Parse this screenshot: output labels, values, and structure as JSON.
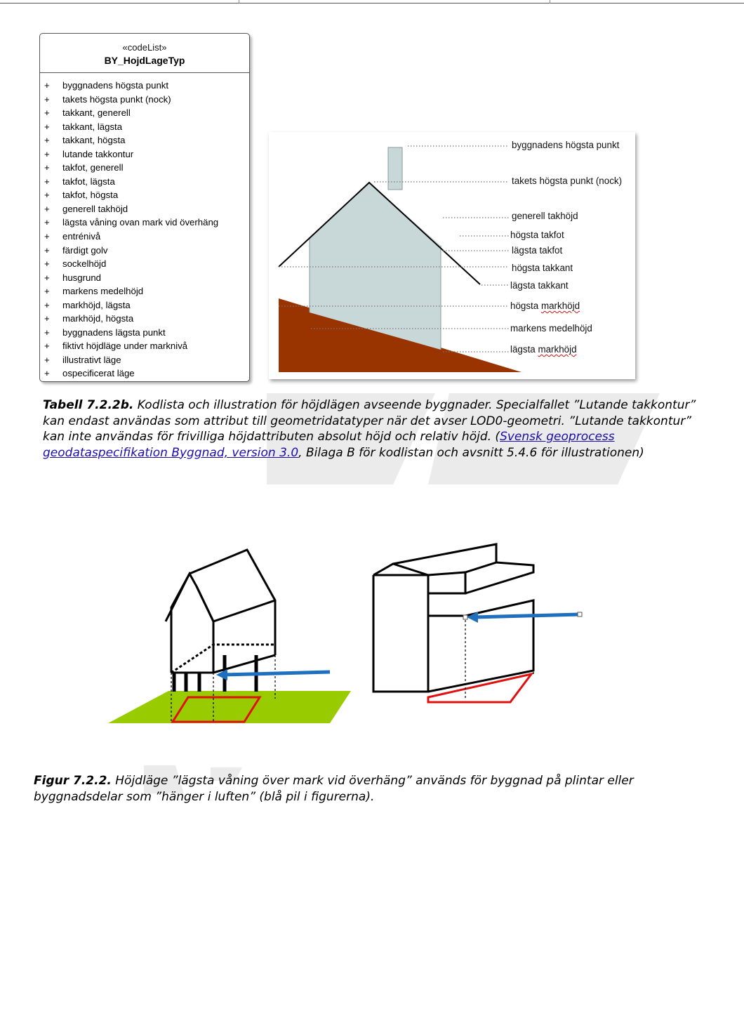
{
  "codelist": {
    "stereotype": "«codeList»",
    "name": "BY_HojdLageTyp",
    "marker": "+",
    "items": [
      "byggnadens högsta punkt",
      "takets högsta punkt (nock)",
      "takkant, generell",
      "takkant, lägsta",
      "takkant, högsta",
      "lutande takkontur",
      "takfot, generell",
      "takfot, lägsta",
      "takfot, högsta",
      "generell takhöjd",
      "lägsta våning ovan mark vid överhäng",
      "entrénivå",
      "färdigt golv",
      "sockelhöjd",
      "husgrund",
      "markens medelhöjd",
      "markhöjd, lägsta",
      "markhöjd, högsta",
      "byggnadens lägsta punkt",
      "fiktivt höjdläge under marknivå",
      "illustrativt läge",
      "ospecificerat läge"
    ]
  },
  "illustration": {
    "labels": [
      "byggnadens högsta punkt",
      "takets högsta punkt (nock)",
      "generell takhöjd",
      "högsta takfot",
      "lägsta takfot",
      "högsta takkant",
      "lägsta takkant",
      "högsta markhöjd",
      "markens medelhöjd",
      "lägsta markhöjd"
    ],
    "colors": {
      "ground": "#993300",
      "wall": "#c8d8d8",
      "chimney": "#c8d8d8"
    }
  },
  "caption1": {
    "label": "Tabell 7.2.2b.",
    "text": " Kodlista och illustration för höjdlägen avseende byggnader. Specialfallet ”Lutande takkontur” kan endast användas som attribut till geometridatatyper när det avser LOD0-geometri. ”Lutande takkontur” kan inte användas för frivilliga höjdattributen absolut höjd och relativ höjd. (",
    "link": "Svensk geoprocess geodataspecifikation Byggnad, version 3.0",
    "tail": ", Bilaga B för kodlistan och avsnitt 5.4.6 för illustrationen)"
  },
  "caption2": {
    "label": "Figur 7.2.2.",
    "text": " Höjdläge ”lägsta våning över mark vid överhäng” används för byggnad på plintar eller byggnadsdelar som ”hänger i luften” (blå pil i figurerna)."
  },
  "figure2": {
    "colors": {
      "ground": "#99cc00",
      "footprint": "#e01010",
      "arrow": "#1f6fbf"
    }
  }
}
